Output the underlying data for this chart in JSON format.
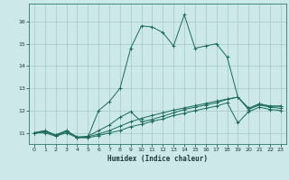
{
  "title": "",
  "xlabel": "Humidex (Indice chaleur)",
  "ylabel": "",
  "bg_color": "#cce8e8",
  "line_color": "#1a6b5a",
  "xlim": [
    -0.5,
    23.5
  ],
  "ylim": [
    10.5,
    16.8
  ],
  "yticks": [
    11,
    12,
    13,
    14,
    15,
    16
  ],
  "xticks": [
    0,
    1,
    2,
    3,
    4,
    5,
    6,
    7,
    8,
    9,
    10,
    11,
    12,
    13,
    14,
    15,
    16,
    17,
    18,
    19,
    20,
    21,
    22,
    23
  ],
  "lines": [
    {
      "x": [
        0,
        1,
        2,
        3,
        4,
        5,
        6,
        7,
        8,
        9,
        10,
        11,
        12,
        13,
        14,
        15,
        16,
        17,
        18,
        19,
        20,
        21,
        22,
        23
      ],
      "y": [
        11.0,
        11.1,
        10.9,
        11.1,
        10.8,
        10.8,
        12.0,
        12.4,
        13.0,
        14.8,
        15.8,
        15.75,
        15.5,
        14.9,
        16.3,
        14.8,
        14.9,
        15.0,
        14.4,
        12.6,
        12.1,
        12.3,
        12.2,
        12.2
      ]
    },
    {
      "x": [
        0,
        1,
        2,
        3,
        4,
        5,
        6,
        7,
        8,
        9,
        10,
        11,
        12,
        13,
        14,
        15,
        16,
        17,
        18,
        19,
        20,
        21,
        22,
        23
      ],
      "y": [
        11.0,
        11.1,
        10.9,
        11.1,
        10.8,
        10.85,
        11.1,
        11.35,
        11.7,
        11.95,
        11.5,
        11.6,
        11.75,
        11.9,
        12.05,
        12.15,
        12.25,
        12.35,
        12.5,
        12.6,
        12.1,
        12.3,
        12.2,
        12.2
      ]
    },
    {
      "x": [
        0,
        1,
        2,
        3,
        4,
        5,
        6,
        7,
        8,
        9,
        10,
        11,
        12,
        13,
        14,
        15,
        16,
        17,
        18,
        19,
        20,
        21,
        22,
        23
      ],
      "y": [
        11.0,
        11.05,
        10.88,
        11.05,
        10.82,
        10.82,
        10.95,
        11.1,
        11.3,
        11.5,
        11.65,
        11.78,
        11.9,
        12.02,
        12.12,
        12.22,
        12.32,
        12.42,
        12.52,
        12.6,
        12.05,
        12.25,
        12.15,
        12.1
      ]
    },
    {
      "x": [
        0,
        1,
        2,
        3,
        4,
        5,
        6,
        7,
        8,
        9,
        10,
        11,
        12,
        13,
        14,
        15,
        16,
        17,
        18,
        19,
        20,
        21,
        22,
        23
      ],
      "y": [
        11.0,
        11.0,
        10.85,
        11.0,
        10.78,
        10.78,
        10.88,
        11.0,
        11.1,
        11.28,
        11.38,
        11.52,
        11.62,
        11.78,
        11.88,
        12.0,
        12.1,
        12.2,
        12.35,
        11.45,
        11.95,
        12.15,
        12.05,
        12.0
      ]
    }
  ]
}
